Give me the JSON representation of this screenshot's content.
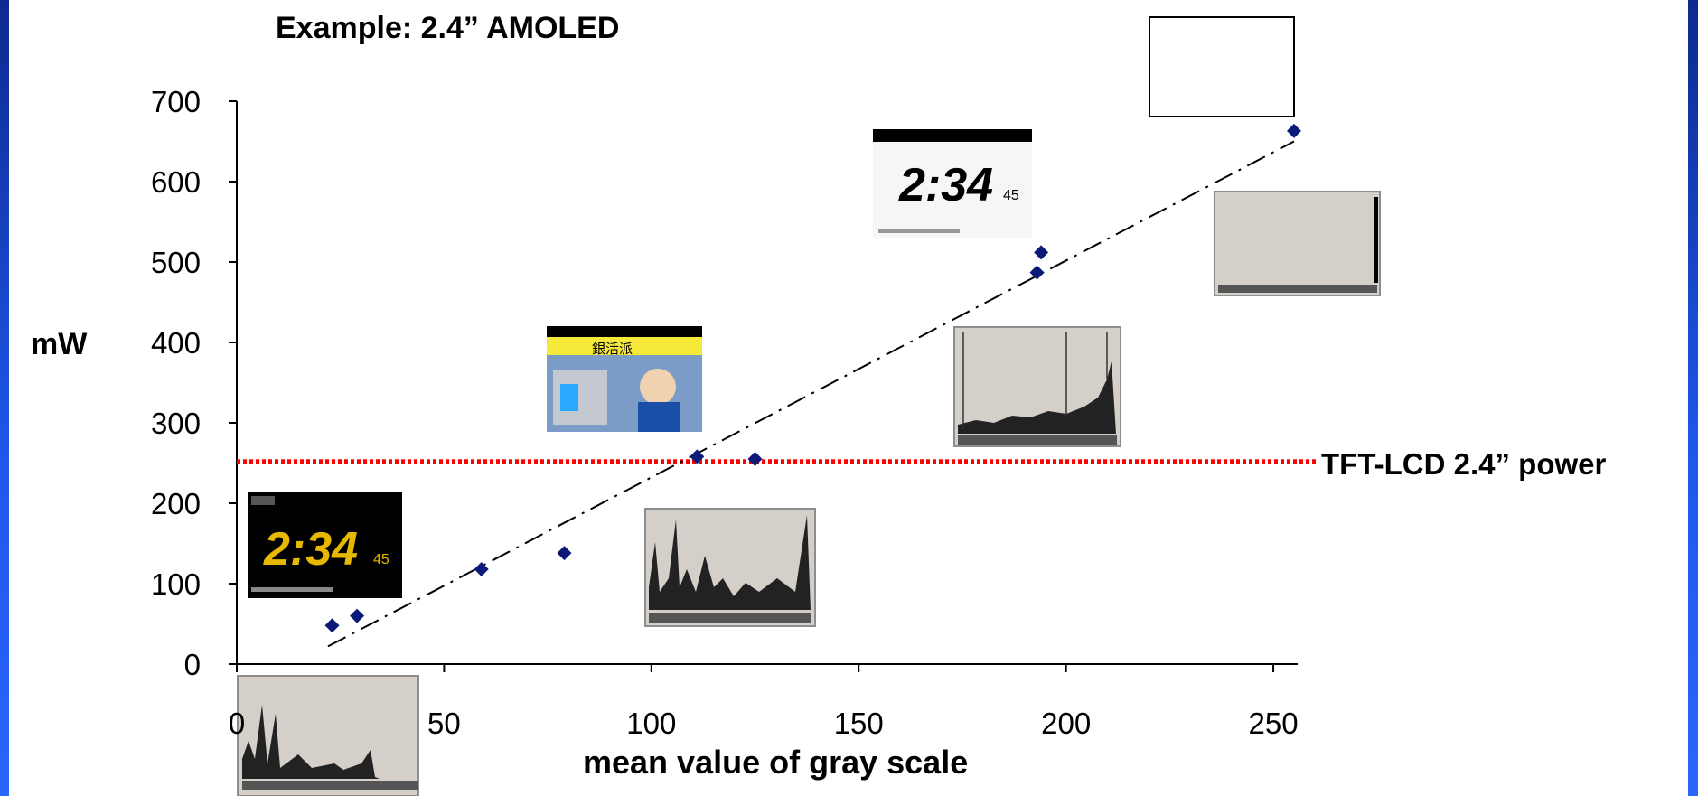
{
  "chart_data": {
    "type": "scatter",
    "title": "Example: 2.4” AMOLED",
    "xlabel": "mean value of gray scale",
    "ylabel": "mW",
    "xlim": [
      0,
      255
    ],
    "ylim": [
      0,
      700
    ],
    "xticks": [
      0,
      50,
      100,
      150,
      200,
      250
    ],
    "yticks": [
      0,
      100,
      200,
      300,
      400,
      500,
      600,
      700
    ],
    "xtick_labels": [
      "0",
      "50",
      "100",
      "150",
      "200",
      "250"
    ],
    "ytick_labels": [
      "0",
      "100",
      "200",
      "300",
      "400",
      "500",
      "600",
      "700"
    ],
    "series": [
      {
        "color": "#0b1a78",
        "marker": "diamond",
        "points": [
          {
            "x": 23,
            "y": 48
          },
          {
            "x": 29,
            "y": 60
          },
          {
            "x": 59,
            "y": 118
          },
          {
            "x": 79,
            "y": 138
          },
          {
            "x": 111,
            "y": 258
          },
          {
            "x": 125,
            "y": 255
          },
          {
            "x": 193,
            "y": 487
          },
          {
            "x": 194,
            "y": 512
          },
          {
            "x": 255,
            "y": 663
          }
        ]
      }
    ],
    "trendline": {
      "style": "dash-dot",
      "color": "#000000",
      "from": {
        "x": 22,
        "y": 22
      },
      "to": {
        "x": 255,
        "y": 650
      }
    },
    "reference_line": {
      "label": "TFT-LCD 2.4” power",
      "y": 252,
      "color": "#ff0000",
      "style": "dotted"
    },
    "grid": false,
    "legend": "none"
  },
  "thumbnails": {
    "clock_time": "2:34",
    "clock_seconds": "45",
    "street_caption": "銀活派"
  }
}
